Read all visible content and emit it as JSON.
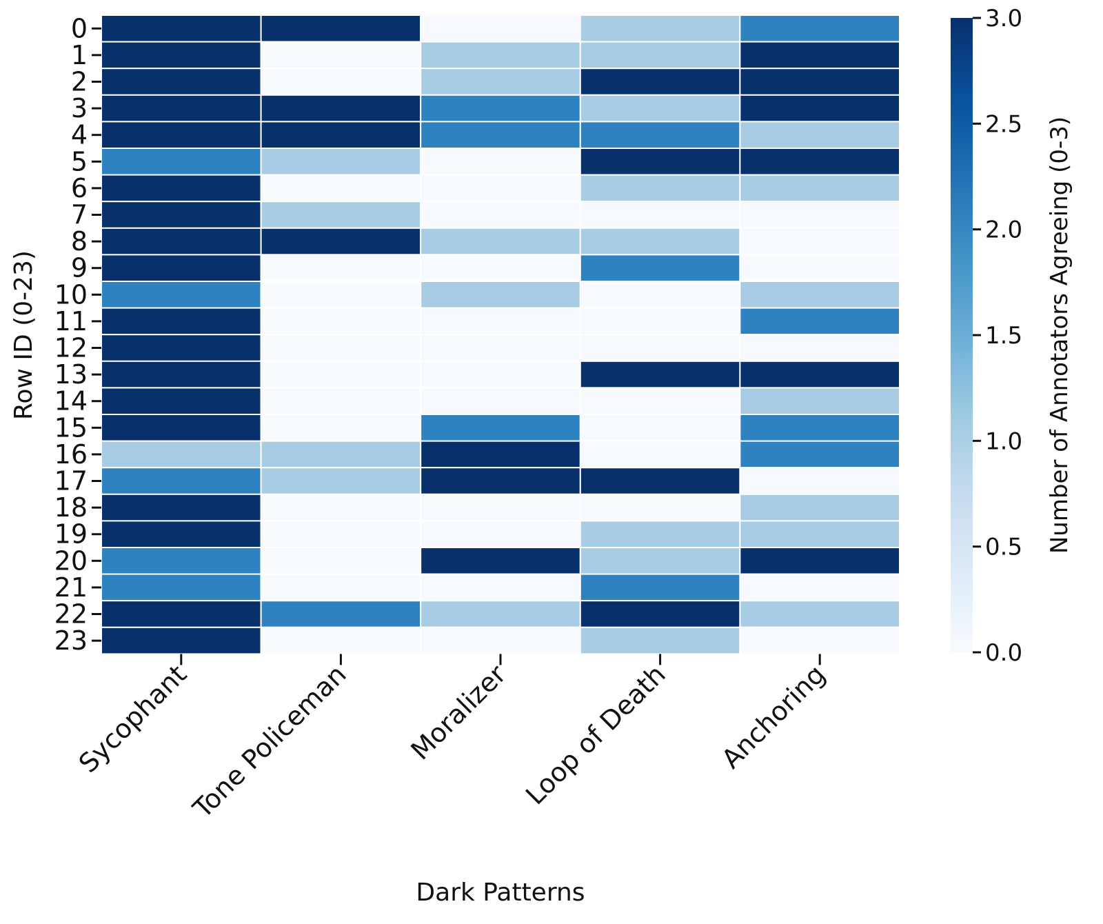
{
  "chart_data": {
    "type": "heatmap",
    "xlabel": "Dark Patterns",
    "ylabel": "Row ID (0-23)",
    "colorbar_label": "Number of Annotators Agreeing (0-3)",
    "vmin": 0,
    "vmax": 3,
    "colorbar_ticks": [
      "0.0",
      "0.5",
      "1.0",
      "1.5",
      "2.0",
      "2.5",
      "3.0"
    ],
    "columns": [
      "Sycophant",
      "Tone Policeman",
      "Moralizer",
      "Loop of Death",
      "Anchoring"
    ],
    "rows": [
      "0",
      "1",
      "2",
      "3",
      "4",
      "5",
      "6",
      "7",
      "8",
      "9",
      "10",
      "11",
      "12",
      "13",
      "14",
      "15",
      "16",
      "17",
      "18",
      "19",
      "20",
      "21",
      "22",
      "23"
    ],
    "values": [
      [
        3,
        3,
        0,
        1,
        2
      ],
      [
        3,
        0,
        1,
        1,
        3
      ],
      [
        3,
        0,
        1,
        3,
        3
      ],
      [
        3,
        3,
        2,
        1,
        3
      ],
      [
        3,
        3,
        2,
        2,
        1
      ],
      [
        2,
        1,
        0,
        3,
        3
      ],
      [
        3,
        0,
        0,
        1,
        1
      ],
      [
        3,
        1,
        0,
        0,
        0
      ],
      [
        3,
        3,
        1,
        1,
        0
      ],
      [
        3,
        0,
        0,
        2,
        0
      ],
      [
        2,
        0,
        1,
        0,
        1
      ],
      [
        3,
        0,
        0,
        0,
        2
      ],
      [
        3,
        0,
        0,
        0,
        0
      ],
      [
        3,
        0,
        0,
        3,
        3
      ],
      [
        3,
        0,
        0,
        0,
        1
      ],
      [
        3,
        0,
        2,
        0,
        2
      ],
      [
        1,
        1,
        3,
        0,
        2
      ],
      [
        2,
        1,
        3,
        3,
        0
      ],
      [
        3,
        0,
        0,
        0,
        1
      ],
      [
        3,
        0,
        0,
        1,
        1
      ],
      [
        2,
        0,
        3,
        1,
        3
      ],
      [
        2,
        0,
        0,
        2,
        0
      ],
      [
        3,
        2,
        1,
        3,
        1
      ],
      [
        3,
        0,
        0,
        1,
        0
      ]
    ],
    "colormap": [
      "#f7fbff",
      "#a8cce3",
      "#2f82c0",
      "#08306b"
    ]
  }
}
